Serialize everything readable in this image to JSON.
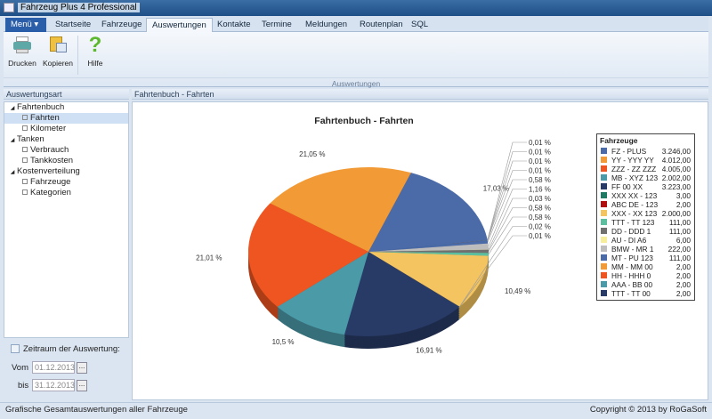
{
  "window": {
    "title": "Fahrzeug Plus 4 Professional"
  },
  "tabs": [
    {
      "label": "Menü ▾"
    },
    {
      "label": "Startseite"
    },
    {
      "label": "Fahrzeuge"
    },
    {
      "label": "Auswertungen"
    },
    {
      "label": "Kontakte"
    },
    {
      "label": "Termine"
    },
    {
      "label": "Meldungen"
    },
    {
      "label": "Routenplan"
    },
    {
      "label": "SQL"
    }
  ],
  "ribbon": {
    "buttons": [
      {
        "label": "Drucken",
        "icon": "printer-icon"
      },
      {
        "label": "Kopieren",
        "icon": "clipboard-icon"
      },
      {
        "label": "Hilfe",
        "icon": "help-icon"
      }
    ],
    "group_label": "Auswertungen"
  },
  "left": {
    "header": "Auswertungsart",
    "tree": [
      {
        "label": "Fahrtenbuch",
        "level": 0
      },
      {
        "label": "Fahrten",
        "level": 1,
        "selected": true
      },
      {
        "label": "Kilometer",
        "level": 1
      },
      {
        "label": "Tanken",
        "level": 0
      },
      {
        "label": "Verbrauch",
        "level": 1
      },
      {
        "label": "Tankkosten",
        "level": 1
      },
      {
        "label": "Kostenverteilung",
        "level": 0
      },
      {
        "label": "Fahrzeuge",
        "level": 1
      },
      {
        "label": "Kategorien",
        "level": 1
      }
    ],
    "period_label": "Zeitraum der Auswertung:",
    "from_label": "Vom",
    "from_value": "01.12.2013",
    "to_label": "bis",
    "to_value": "31.12.2013",
    "picker_label": "..."
  },
  "main": {
    "header": "Fahrtenbuch - Fahrten"
  },
  "chart_data": {
    "type": "pie",
    "title": "Fahrtenbuch - Fahrten",
    "legend_title": "Fahrzeuge",
    "legend_position": "right",
    "style": "3d",
    "series": [
      {
        "name": "FZ - PLUS",
        "value": 3246,
        "value_label": "3.246,00",
        "color": "#4a6aa8",
        "pct": "17,03 %"
      },
      {
        "name": "YY - YYY YY",
        "value": 4012,
        "value_label": "4.012,00",
        "color": "#f29a35",
        "pct": "21,05 %"
      },
      {
        "name": "ZZZ - ZZ ZZZ",
        "value": 4005,
        "value_label": "4.005,00",
        "color": "#ee5520",
        "pct": "21,01 %"
      },
      {
        "name": "MB - XYZ 123",
        "value": 2002,
        "value_label": "2.002,00",
        "color": "#4b9aa8",
        "pct": "10,5 %"
      },
      {
        "name": "FF 00 XX",
        "value": 3223,
        "value_label": "3.223,00",
        "color": "#283a66",
        "pct": "16,91 %"
      },
      {
        "name": "XXX XX - 123",
        "value": 3,
        "value_label": "3,00",
        "color": "#1f7a64",
        "pct": "0,02 %"
      },
      {
        "name": "ABC DE - 123",
        "value": 2,
        "value_label": "2,00",
        "color": "#b01010",
        "pct": "0,01 %"
      },
      {
        "name": "XXX - XX 123",
        "value": 2000,
        "value_label": "2.000,00",
        "color": "#f4c460",
        "pct": "10,49 %"
      },
      {
        "name": "TTT - TT 123",
        "value": 111,
        "value_label": "111,00",
        "color": "#5cc0a0",
        "pct": "0,58 %"
      },
      {
        "name": "DD - DDD 1",
        "value": 111,
        "value_label": "111,00",
        "color": "#707070",
        "pct": "0,58 %"
      },
      {
        "name": "AU - DI A6",
        "value": 6,
        "value_label": "6,00",
        "color": "#f6ee9a",
        "pct": "0,03 %"
      },
      {
        "name": "BMW - MR 1",
        "value": 222,
        "value_label": "222,00",
        "color": "#bdbdbd",
        "pct": "1,16 %"
      },
      {
        "name": "MT - PU 123",
        "value": 111,
        "value_label": "111,00",
        "color": "#4a6aa8",
        "pct": "0,58 %"
      },
      {
        "name": "MM - MM 00",
        "value": 2,
        "value_label": "2,00",
        "color": "#f29a35",
        "pct": "0,01 %"
      },
      {
        "name": "HH - HHH 0",
        "value": 2,
        "value_label": "2,00",
        "color": "#ee5520",
        "pct": "0,01 %"
      },
      {
        "name": "AAA - BB 00",
        "value": 2,
        "value_label": "2,00",
        "color": "#4b9aa8",
        "pct": "0,01 %"
      },
      {
        "name": "TTT - TT 00",
        "value": 2,
        "value_label": "2,00",
        "color": "#283a66",
        "pct": "0,01 %"
      }
    ]
  },
  "status": {
    "left": "Grafische Gesamtauswertungen aller Fahrzeuge",
    "right": "Copyright © 2013 by RoGaSoft"
  }
}
